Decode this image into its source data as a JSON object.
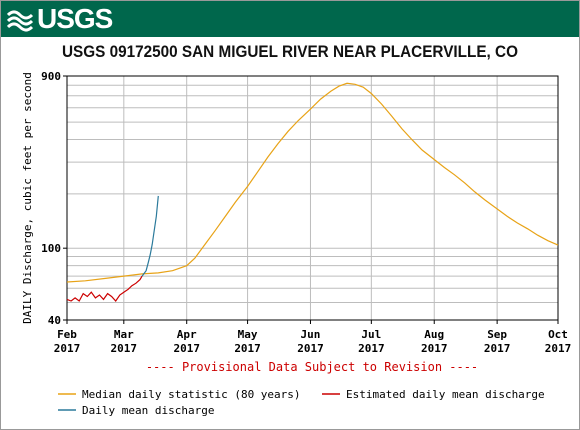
{
  "header": {
    "logo_text": "USGS",
    "logo_icon": "usgs-wave-icon",
    "banner_color": "#00674c"
  },
  "chart_data": {
    "type": "line",
    "title": "USGS 09172500 SAN MIGUEL RIVER NEAR PLACERVILLE, CO",
    "ylabel": "DAILY Discharge, cubic feet per second",
    "xlabel": "",
    "yscale": "log",
    "ylim": [
      40,
      900
    ],
    "xlim": [
      "2017-02-01",
      "2017-10-01"
    ],
    "y_ticks": [
      40,
      100,
      900
    ],
    "x_ticks": [
      {
        "date": "2017-02-01",
        "label": "Feb",
        "year": "2017"
      },
      {
        "date": "2017-03-01",
        "label": "Mar",
        "year": "2017"
      },
      {
        "date": "2017-04-01",
        "label": "Apr",
        "year": "2017"
      },
      {
        "date": "2017-05-01",
        "label": "May",
        "year": "2017"
      },
      {
        "date": "2017-06-01",
        "label": "Jun",
        "year": "2017"
      },
      {
        "date": "2017-07-01",
        "label": "Jul",
        "year": "2017"
      },
      {
        "date": "2017-08-01",
        "label": "Aug",
        "year": "2017"
      },
      {
        "date": "2017-09-01",
        "label": "Sep",
        "year": "2017"
      },
      {
        "date": "2017-10-01",
        "label": "Oct",
        "year": "2017"
      }
    ],
    "grid": true,
    "notice": "---- Provisional Data Subject to Revision ----",
    "notice_color": "#cc0000",
    "legend_position": "bottom",
    "series": [
      {
        "name": "Median daily statistic (80 years)",
        "color": "#e8a317",
        "points": [
          [
            "2017-02-01",
            65
          ],
          [
            "2017-02-10",
            66
          ],
          [
            "2017-02-20",
            68
          ],
          [
            "2017-03-01",
            70
          ],
          [
            "2017-03-10",
            72
          ],
          [
            "2017-03-18",
            73
          ],
          [
            "2017-03-25",
            75
          ],
          [
            "2017-04-01",
            80
          ],
          [
            "2017-04-05",
            88
          ],
          [
            "2017-04-10",
            105
          ],
          [
            "2017-04-15",
            125
          ],
          [
            "2017-04-20",
            150
          ],
          [
            "2017-04-25",
            180
          ],
          [
            "2017-05-01",
            220
          ],
          [
            "2017-05-06",
            265
          ],
          [
            "2017-05-11",
            320
          ],
          [
            "2017-05-16",
            380
          ],
          [
            "2017-05-21",
            445
          ],
          [
            "2017-05-26",
            510
          ],
          [
            "2017-06-01",
            590
          ],
          [
            "2017-06-06",
            670
          ],
          [
            "2017-06-11",
            740
          ],
          [
            "2017-06-15",
            790
          ],
          [
            "2017-06-19",
            820
          ],
          [
            "2017-06-23",
            810
          ],
          [
            "2017-06-27",
            780
          ],
          [
            "2017-07-01",
            720
          ],
          [
            "2017-07-06",
            630
          ],
          [
            "2017-07-11",
            540
          ],
          [
            "2017-07-16",
            460
          ],
          [
            "2017-07-21",
            400
          ],
          [
            "2017-07-26",
            350
          ],
          [
            "2017-08-01",
            310
          ],
          [
            "2017-08-06",
            280
          ],
          [
            "2017-08-11",
            255
          ],
          [
            "2017-08-16",
            230
          ],
          [
            "2017-08-21",
            205
          ],
          [
            "2017-08-26",
            185
          ],
          [
            "2017-09-01",
            165
          ],
          [
            "2017-09-06",
            150
          ],
          [
            "2017-09-11",
            138
          ],
          [
            "2017-09-16",
            128
          ],
          [
            "2017-09-21",
            118
          ],
          [
            "2017-09-26",
            110
          ],
          [
            "2017-10-01",
            104
          ]
        ]
      },
      {
        "name": "Estimated daily mean discharge",
        "color": "#cc0000",
        "points": [
          [
            "2017-02-01",
            52
          ],
          [
            "2017-02-03",
            51
          ],
          [
            "2017-02-05",
            53
          ],
          [
            "2017-02-07",
            51
          ],
          [
            "2017-02-09",
            56
          ],
          [
            "2017-02-11",
            54
          ],
          [
            "2017-02-13",
            57
          ],
          [
            "2017-02-15",
            53
          ],
          [
            "2017-02-17",
            55
          ],
          [
            "2017-02-19",
            52
          ],
          [
            "2017-02-21",
            56
          ],
          [
            "2017-02-23",
            54
          ],
          [
            "2017-02-25",
            51
          ],
          [
            "2017-02-27",
            55
          ],
          [
            "2017-03-01",
            57
          ],
          [
            "2017-03-03",
            59
          ],
          [
            "2017-03-05",
            62
          ],
          [
            "2017-03-07",
            64
          ],
          [
            "2017-03-09",
            67
          ],
          [
            "2017-03-10",
            70
          ]
        ]
      },
      {
        "name": "Daily mean discharge",
        "color": "#2b7a9b",
        "points": [
          [
            "2017-03-10",
            70
          ],
          [
            "2017-03-12",
            75
          ],
          [
            "2017-03-13",
            83
          ],
          [
            "2017-03-14",
            92
          ],
          [
            "2017-03-15",
            105
          ],
          [
            "2017-03-16",
            125
          ],
          [
            "2017-03-17",
            150
          ],
          [
            "2017-03-18",
            195
          ]
        ]
      }
    ]
  }
}
